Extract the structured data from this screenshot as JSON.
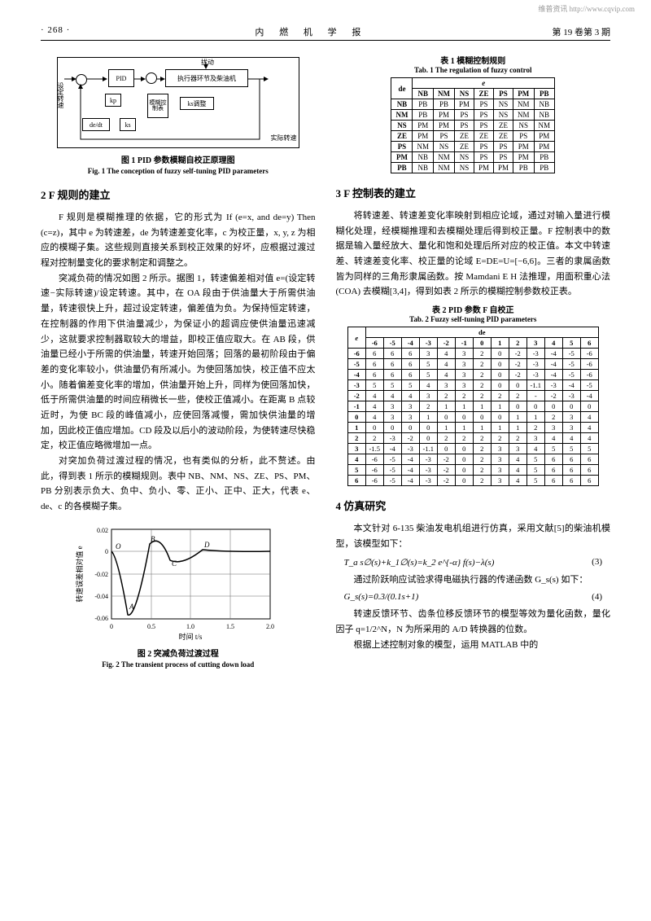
{
  "watermark": "维普资讯 http://www.cqvip.com",
  "header": {
    "page_num": "· 268 ·",
    "journal": "内 燃 机 学 报",
    "issue": "第 19 卷第 3 期"
  },
  "fig1": {
    "caption_cn": "图 1  PID 参数模糊自校正原理图",
    "caption_en": "Fig. 1  The conception of fuzzy self-tuning PID parameters",
    "labels": {
      "in": "设定转速",
      "out": "实际转速",
      "dist": "扰动",
      "pid": "PID",
      "exec": "执行器环节及柴油机",
      "fuzzy": "模糊控制表",
      "ks": "ks调整",
      "kp": "kp",
      "dedt": "de/dt",
      "kss": "ks"
    }
  },
  "sec2": {
    "title": "2  F 规则的建立",
    "p1": "F 规则是模糊推理的依据，它的形式为 If (e=x, and de=y) Then (c=z)，其中 e 为转速差，de 为转速差变化率，c 为校正量，x, y, z 为相应的模糊子集。这些规则直接关系到校正效果的好坏，应根据过渡过程对控制量变化的要求制定和调整之。",
    "p2": "突减负荷的情况如图 2 所示。据图 1，转速偏差相对值 e=(设定转速−实际转速)/设定转速。其中，在 OA 段由于供油量大于所需供油量，转速很快上升，超过设定转速，偏差值为负。为保持恒定转速，在控制器的作用下供油量减少，为保证小的超调应使供油量迅速减少，这就要求控制器取较大的增益，即校正值应取大。在 AB 段，供油量已经小于所需的供油量，转速开始回落；回落的最初阶段由于偏差的变化率较小，供油量仍有所减小。为使回落加快，校正值不应太小。随着偏差变化率的增加，供油量开始上升，同样为使回落加快，低于所需供油量的时间应稍微长一些，使校正值减小。在距离 B 点较近时，为使 BC 段的峰值减小，应使回落减慢，需加快供油量的增加，因此校正值应增加。CD 段及以后小的波动阶段，为使转速尽快稳定，校正值应略微增加一点。",
    "p3": "对突加负荷过渡过程的情况，也有类似的分析，此不赘述。由此，得到表 1 所示的模糊规则。表中 NB、NM、NS、ZE、PS、PM、PB 分别表示负大、负中、负小、零、正小、正中、正大，代表 e、de、c 的各模糊子集。"
  },
  "fig2": {
    "caption_cn": "图 2  突减负荷过渡过程",
    "caption_en": "Fig. 2  The transient process of cutting down load",
    "xlabel": "时间 t/s",
    "ylabel": "转速误差相对值 e",
    "xticks": [
      "0",
      "0.5",
      "1.0",
      "1.5",
      "2.0"
    ],
    "yticks": [
      "-0.06",
      "-0.04",
      "-0.02",
      "0",
      "0.02"
    ],
    "pts": {
      "O": "O",
      "A": "A",
      "B": "B",
      "C": "C",
      "D": "D"
    },
    "curve_color": "#000",
    "grid_color": "#666"
  },
  "tab1": {
    "caption_cn": "表 1  模糊控制规则",
    "caption_en": "Tab. 1  The regulation of fuzzy control",
    "col_head": "e",
    "row_head": "de",
    "cols": [
      "NB",
      "NM",
      "NS",
      "ZE",
      "PS",
      "PM",
      "PB"
    ],
    "rows": [
      "NB",
      "NM",
      "NS",
      "ZE",
      "PS",
      "PM",
      "PB"
    ],
    "data": [
      [
        "PB",
        "PB",
        "PM",
        "PS",
        "NS",
        "NM",
        "NB"
      ],
      [
        "PB",
        "PM",
        "PS",
        "PS",
        "NS",
        "NM",
        "NB"
      ],
      [
        "PM",
        "PM",
        "PS",
        "PS",
        "ZE",
        "NS",
        "NM"
      ],
      [
        "PM",
        "PS",
        "ZE",
        "ZE",
        "ZE",
        "PS",
        "PM"
      ],
      [
        "NM",
        "NS",
        "ZE",
        "PS",
        "PS",
        "PM",
        "PM"
      ],
      [
        "NB",
        "NM",
        "NS",
        "PS",
        "PS",
        "PM",
        "PB"
      ],
      [
        "NB",
        "NM",
        "NS",
        "PM",
        "PM",
        "PB",
        "PB"
      ]
    ]
  },
  "sec3": {
    "title": "3  F 控制表的建立",
    "p1": "将转速差、转速差变化率映射到相应论域，通过对输入量进行模糊化处理，经模糊推理和去模糊处理后得到校正量。F 控制表中的数据是输入量经放大、量化和饱和处理后所对应的校正值。本文中转速差、转速差变化率、校正量的论域 E=DE=U=[−6,6]。三者的隶属函数皆为同样的三角形隶属函数。按 Mamdani E H 法推理，用面积重心法 (COA) 去模糊[3,4]，得到如表 2 所示的模糊控制参数校正表。"
  },
  "tab2": {
    "caption_cn": "表 2  PID 参数 F 自校正",
    "caption_en": "Tab. 2  Fuzzy self-tuning PID parameters",
    "col_head": "de",
    "row_head": "e",
    "cols": [
      "-6",
      "-5",
      "-4",
      "-3",
      "-2",
      "-1",
      "0",
      "1",
      "2",
      "3",
      "4",
      "5",
      "6"
    ],
    "rows": [
      "-6",
      "-5",
      "-4",
      "-3",
      "-2",
      "-1",
      "0",
      "1",
      "2",
      "3",
      "4",
      "5",
      "6"
    ],
    "data": [
      [
        "6",
        "6",
        "6",
        "3",
        "4",
        "3",
        "2",
        "0",
        "-2",
        "-3",
        "-4",
        "-5",
        "-6"
      ],
      [
        "6",
        "6",
        "6",
        "5",
        "4",
        "3",
        "2",
        "0",
        "-2",
        "-3",
        "-4",
        "-5",
        "-6"
      ],
      [
        "6",
        "6",
        "6",
        "5",
        "4",
        "3",
        "2",
        "0",
        "-2",
        "-3",
        "-4",
        "-5",
        "-6"
      ],
      [
        "5",
        "5",
        "5",
        "4",
        "3",
        "3",
        "2",
        "0",
        "0",
        "-1.1",
        "-3",
        "-4",
        "-5"
      ],
      [
        "4",
        "4",
        "4",
        "3",
        "2",
        "2",
        "2",
        "2",
        "2",
        "-",
        "-2",
        "-3",
        "-4"
      ],
      [
        "4",
        "3",
        "3",
        "2",
        "1",
        "1",
        "1",
        "1",
        "0",
        "0",
        "0",
        "0",
        "0"
      ],
      [
        "4",
        "3",
        "3",
        "1",
        "0",
        "0",
        "0",
        "0",
        "1",
        "1",
        "2",
        "3",
        "4"
      ],
      [
        "0",
        "0",
        "0",
        "0",
        "1",
        "1",
        "1",
        "1",
        "1",
        "2",
        "3",
        "3",
        "4"
      ],
      [
        "2",
        "-3",
        "-2",
        "0",
        "2",
        "2",
        "2",
        "2",
        "2",
        "3",
        "4",
        "4",
        "4"
      ],
      [
        "-1.5",
        "-4",
        "-3",
        "-1.1",
        "0",
        "0",
        "2",
        "3",
        "3",
        "4",
        "5",
        "5",
        "5"
      ],
      [
        "-6",
        "-5",
        "-4",
        "-3",
        "-2",
        "0",
        "2",
        "3",
        "4",
        "5",
        "6",
        "6",
        "6"
      ],
      [
        "-6",
        "-5",
        "-4",
        "-3",
        "-2",
        "0",
        "2",
        "3",
        "4",
        "5",
        "6",
        "6",
        "6"
      ],
      [
        "-6",
        "-5",
        "-4",
        "-3",
        "-2",
        "0",
        "2",
        "3",
        "4",
        "5",
        "6",
        "6",
        "6"
      ]
    ]
  },
  "sec4": {
    "title": "4  仿真研究",
    "p1": "本文针对 6-135 柴油发电机组进行仿真，采用文献[5]的柴油机模型，该模型如下：",
    "eq3": "T_a s∅(s)+k_1∅(s)=k_2 e^{-α} f(s)−λ(s)",
    "eq3n": "(3)",
    "p2": "通过阶跃响应试验求得电磁执行器的传递函数 G_s(s) 如下：",
    "eq4": "G_s(s)=0.3/(0.1s+1)",
    "eq4n": "(4)",
    "p3": "转速反馈环节、齿条位移反馈环节的模型等效为量化函数，量化因子 q=1/2^N，N 为所采用的 A/D 转换器的位数。",
    "p4": "根据上述控制对象的模型，运用 MATLAB 中的"
  }
}
